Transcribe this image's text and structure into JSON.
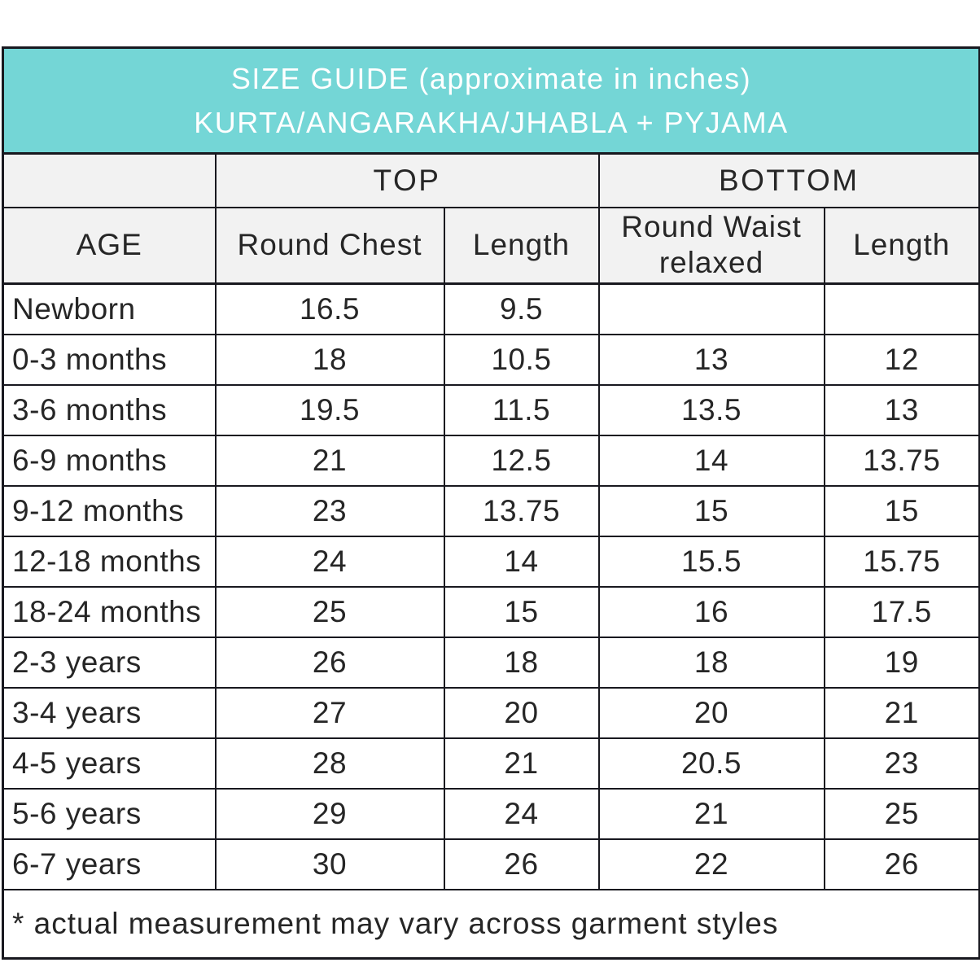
{
  "header": {
    "title_line1": "SIZE GUIDE (approximate in inches)",
    "title_line2": "KURTA/ANGARAKHA/JHABLA + PYJAMA"
  },
  "table": {
    "group_top": "TOP",
    "group_bottom": "BOTTOM",
    "columns": [
      "AGE",
      "Round Chest",
      "Length",
      "Round Waist relaxed",
      "Length"
    ]
  },
  "footnote": "* actual measurement may vary across garment styles",
  "colors": {
    "header_bg": "#74d6d6",
    "header_text": "#ffffff",
    "subheader_bg": "#f2f2f2",
    "border": "#18181f",
    "text": "#262626"
  },
  "chart_data": {
    "type": "table",
    "title": "SIZE GUIDE (approximate in inches)",
    "subtitle": "KURTA/ANGARAKHA/JHABLA + PYJAMA",
    "column_groups": [
      "",
      "TOP",
      "TOP",
      "BOTTOM",
      "BOTTOM"
    ],
    "columns": [
      "AGE",
      "Round Chest",
      "Length",
      "Round Waist relaxed",
      "Length"
    ],
    "rows": [
      [
        "Newborn",
        "16.5",
        "9.5",
        "",
        ""
      ],
      [
        "0-3 months",
        "18",
        "10.5",
        "13",
        "12"
      ],
      [
        "3-6 months",
        "19.5",
        "11.5",
        "13.5",
        "13"
      ],
      [
        "6-9 months",
        "21",
        "12.5",
        "14",
        "13.75"
      ],
      [
        "9-12 months",
        "23",
        "13.75",
        "15",
        "15"
      ],
      [
        "12-18 months",
        "24",
        "14",
        "15.5",
        "15.75"
      ],
      [
        "18-24 months",
        "25",
        "15",
        "16",
        "17.5"
      ],
      [
        "2-3 years",
        "26",
        "18",
        "18",
        "19"
      ],
      [
        "3-4 years",
        "27",
        "20",
        "20",
        "21"
      ],
      [
        "4-5 years",
        "28",
        "21",
        "20.5",
        "23"
      ],
      [
        "5-6 years",
        "29",
        "24",
        "21",
        "25"
      ],
      [
        "6-7 years",
        "30",
        "26",
        "22",
        "26"
      ]
    ],
    "footnote": "* actual measurement may vary across garment styles"
  }
}
